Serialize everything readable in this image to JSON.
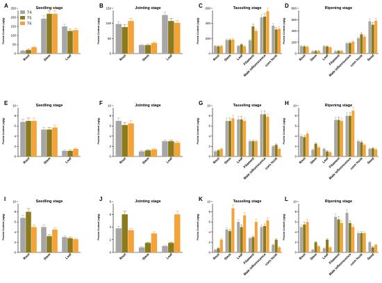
{
  "colors": {
    "T4": "#a6a6a6",
    "T5": "#8c7a1e",
    "T6": "#f5a236"
  },
  "legend": [
    "T4",
    "T5",
    "T6"
  ],
  "ylabel": "Protein Content (ug/g)",
  "chart_data": [
    {
      "letter": "A",
      "type": "bar",
      "title": "Seedling stage",
      "categories": [
        "Root",
        "Stem",
        "Leaf"
      ],
      "ylim": [
        0,
        250
      ],
      "ticks": [
        0,
        50,
        100,
        150,
        200,
        250
      ],
      "series": [
        {
          "name": "T4",
          "values": [
            15,
            193,
            150
          ]
        },
        {
          "name": "T5",
          "values": [
            20,
            220,
            125
          ]
        },
        {
          "name": "T6",
          "values": [
            35,
            220,
            130
          ]
        }
      ]
    },
    {
      "letter": "B",
      "type": "bar",
      "title": "Jointing stage",
      "categories": [
        "Root",
        "Stem",
        "Leaf"
      ],
      "ylim": [
        0,
        150
      ],
      "ticks": [
        0,
        50,
        100,
        150
      ],
      "series": [
        {
          "name": "T4",
          "values": [
            98,
            28,
            128
          ]
        },
        {
          "name": "T5",
          "values": [
            88,
            28,
            108
          ]
        },
        {
          "name": "T6",
          "values": [
            108,
            35,
            102
          ]
        }
      ]
    },
    {
      "letter": "C",
      "type": "bar",
      "title": "Tasseling stage",
      "categories": [
        "Root",
        "Stem",
        "Leaf",
        "Filament",
        "Male inflorescence",
        "corn husk"
      ],
      "ylim": [
        0,
        600
      ],
      "ticks": [
        0,
        200,
        400,
        600
      ],
      "series": [
        {
          "name": "T4",
          "values": [
            100,
            180,
            100,
            175,
            480,
            370
          ]
        },
        {
          "name": "T5",
          "values": [
            95,
            180,
            120,
            360,
            490,
            320
          ]
        },
        {
          "name": "T6",
          "values": [
            100,
            185,
            95,
            300,
            560,
            330
          ]
        }
      ]
    },
    {
      "letter": "D",
      "type": "bar",
      "title": "Ripening stage",
      "categories": [
        "Root",
        "Stem",
        "Leaf",
        "Filament",
        "Male inflorescence",
        "corn husk",
        "Seed"
      ],
      "ylim": [
        0,
        800
      ],
      "ticks": [
        0,
        200,
        400,
        600,
        800
      ],
      "series": [
        {
          "name": "T4",
          "values": [
            130,
            40,
            130,
            40,
            180,
            270,
            570
          ]
        },
        {
          "name": "T5",
          "values": [
            125,
            45,
            125,
            45,
            185,
            340,
            510
          ]
        },
        {
          "name": "T6",
          "values": [
            120,
            45,
            110,
            45,
            210,
            300,
            580
          ]
        }
      ]
    },
    {
      "letter": "E",
      "type": "bar",
      "title": "Seedling stage",
      "categories": [
        "Root",
        "Stem",
        "Leaf"
      ],
      "ylim": [
        0,
        10
      ],
      "ticks": [
        0,
        2,
        4,
        6,
        8,
        10
      ],
      "series": [
        {
          "name": "T4",
          "values": [
            6.8,
            5.3,
            1.1
          ]
        },
        {
          "name": "T5",
          "values": [
            7.0,
            5.3,
            1.1
          ]
        },
        {
          "name": "T6",
          "values": [
            7.0,
            5.7,
            1.5
          ]
        }
      ]
    },
    {
      "letter": "F",
      "type": "bar",
      "title": "Jointing stage",
      "categories": [
        "Root",
        "Stem",
        "Leaf"
      ],
      "ylim": [
        0,
        10
      ],
      "ticks": [
        0,
        2,
        4,
        6,
        8,
        10
      ],
      "series": [
        {
          "name": "T4",
          "values": [
            7.0,
            1.0,
            3.0
          ]
        },
        {
          "name": "T5",
          "values": [
            6.2,
            1.2,
            3.0
          ]
        },
        {
          "name": "T6",
          "values": [
            6.5,
            1.4,
            2.7
          ]
        }
      ]
    },
    {
      "letter": "G",
      "type": "bar",
      "title": "Tasseling stage",
      "categories": [
        "Root",
        "Stem",
        "Leaf",
        "Filament",
        "Male inflorescence",
        "corn husk"
      ],
      "ylim": [
        0,
        10
      ],
      "ticks": [
        0,
        2,
        4,
        6,
        8,
        10
      ],
      "series": [
        {
          "name": "T4",
          "values": [
            1.0,
            7.0,
            7.3,
            3.0,
            8.3,
            2.0
          ]
        },
        {
          "name": "T5",
          "values": [
            1.2,
            7.0,
            7.3,
            3.0,
            8.3,
            2.3
          ]
        },
        {
          "name": "T6",
          "values": [
            1.5,
            7.5,
            7.0,
            3.0,
            7.8,
            1.5
          ]
        }
      ]
    },
    {
      "letter": "H",
      "type": "bar",
      "title": "Ripening stage",
      "categories": [
        "Root",
        "Stem",
        "Leaf",
        "Filament",
        "Male inflorescence",
        "corn husk",
        "Seed"
      ],
      "ylim": [
        0,
        10
      ],
      "ticks": [
        0,
        2,
        4,
        6,
        8,
        10
      ],
      "series": [
        {
          "name": "T4",
          "values": [
            4.0,
            1.3,
            1.5,
            7.2,
            8.0,
            3.0,
            1.5
          ]
        },
        {
          "name": "T5",
          "values": [
            3.8,
            2.5,
            1.0,
            7.2,
            8.0,
            2.8,
            1.6
          ]
        },
        {
          "name": "T6",
          "values": [
            4.5,
            1.8,
            0.8,
            7.0,
            9.0,
            2.3,
            1.4
          ]
        }
      ]
    },
    {
      "letter": "I",
      "type": "bar",
      "title": "Seedling stage",
      "categories": [
        "Root",
        "Stem",
        "Leaf"
      ],
      "ylim": [
        0,
        10
      ],
      "ticks": [
        0,
        2,
        4,
        6,
        8,
        10
      ],
      "series": [
        {
          "name": "T4",
          "values": [
            6.8,
            5.0,
            3.0
          ]
        },
        {
          "name": "T5",
          "values": [
            8.0,
            3.2,
            2.8
          ]
        },
        {
          "name": "T6",
          "values": [
            5.0,
            4.5,
            2.6
          ]
        }
      ]
    },
    {
      "letter": "J",
      "type": "bar",
      "title": "Jointing stage",
      "categories": [
        "Root",
        "Stem",
        "Leaf"
      ],
      "ylim": [
        0,
        8
      ],
      "ticks": [
        0,
        2,
        4,
        6,
        8
      ],
      "series": [
        {
          "name": "T4",
          "values": [
            3.8,
            0.8,
            1.0
          ]
        },
        {
          "name": "T5",
          "values": [
            6.0,
            1.5,
            1.5
          ]
        },
        {
          "name": "T6",
          "values": [
            3.5,
            3.0,
            6.0
          ]
        }
      ]
    },
    {
      "letter": "K",
      "type": "bar",
      "title": "Tasseling stage",
      "categories": [
        "Root",
        "Stem",
        "Leaf",
        "Filament",
        "Male inflorescence",
        "corn husk"
      ],
      "ylim": [
        0,
        10
      ],
      "ticks": [
        0,
        2,
        4,
        6,
        8,
        10
      ],
      "series": [
        {
          "name": "T4",
          "values": [
            0.5,
            4.5,
            6.0,
            2.8,
            5.0,
            1.5
          ]
        },
        {
          "name": "T5",
          "values": [
            0.8,
            4.2,
            5.0,
            3.0,
            5.2,
            2.5
          ]
        },
        {
          "name": "T6",
          "values": [
            2.5,
            8.7,
            7.3,
            6.0,
            6.3,
            1.0
          ]
        }
      ]
    },
    {
      "letter": "L",
      "type": "bar",
      "title": "Ripening stage",
      "categories": [
        "Root",
        "Stem",
        "Leaf",
        "Filament",
        "Male inflorescence",
        "corn husk",
        "Seed"
      ],
      "ylim": [
        0,
        10
      ],
      "ticks": [
        0,
        2,
        4,
        6,
        8,
        10
      ],
      "series": [
        {
          "name": "T4",
          "values": [
            5.0,
            0.5,
            0.8,
            7.0,
            7.8,
            3.8,
            2.0
          ]
        },
        {
          "name": "T5",
          "values": [
            5.5,
            2.0,
            2.5,
            6.5,
            5.8,
            3.8,
            1.0
          ]
        },
        {
          "name": "T6",
          "values": [
            6.0,
            1.2,
            1.0,
            5.8,
            5.0,
            3.8,
            1.5
          ]
        }
      ]
    }
  ]
}
